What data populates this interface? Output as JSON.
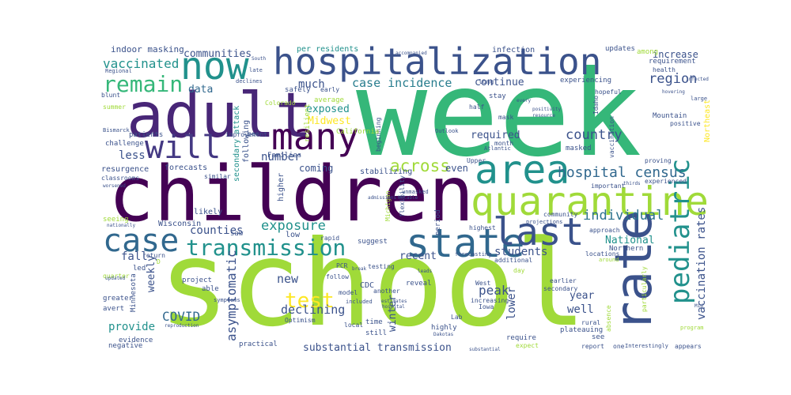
{
  "colors": {
    "background": "#ffffff",
    "palette": [
      "#440154",
      "#3b528b",
      "#21918c",
      "#35b779",
      "#a0da39",
      "#fde725"
    ]
  },
  "words": {
    "school": "school",
    "week": "week",
    "children": "children",
    "adult": "adult",
    "hospitalization": "hospitalization",
    "quarantine": "quarantine",
    "rate": "rate",
    "area": "area",
    "state": "state",
    "now": "now",
    "many": "many",
    "case": "case",
    "will": "will",
    "transmission": "transmission",
    "last": "last",
    "pediatric": "pediatric",
    "remain": "remain",
    "test": "test",
    "hospital_census": "hospital census",
    "case_incidence": "case incidence",
    "across": "across",
    "country": "country",
    "individual": "individual",
    "region": "region",
    "increase": "increase",
    "exposure": "exposure",
    "counties": "counties",
    "asymptomatic": "asymptomatic",
    "communities": "communities",
    "vaccinated": "vaccinated",
    "covid": "COVID",
    "declining": "declining",
    "vaccination_rates": "vaccination rates",
    "peak": "peak",
    "students": "students",
    "provide": "provide",
    "weekly": "weekly",
    "fall": "fall",
    "less": "less",
    "number": "number",
    "data": "data",
    "much": "much",
    "exposed": "exposed",
    "midwest": "Midwest",
    "continue": "continue",
    "required": "required",
    "coming": "coming",
    "recent": "recent",
    "winter": "winter",
    "new": "new",
    "well": "well",
    "lower": "lower",
    "year": "year",
    "national": "National",
    "substantial_transmission": "substantial transmission",
    "indoor_masking": "indoor masking",
    "per_residents": "per residents",
    "infection": "infection",
    "updates": "updates",
    "among": "among",
    "requirement": "requirement",
    "health": "health",
    "mountain": "Mountain",
    "positive": "positive",
    "northeast": "Northeast",
    "experienced": "experienced",
    "proving": "proving",
    "important": "important",
    "vaccination": "vaccination",
    "idaho": "Idaho",
    "masked": "masked",
    "experiencing": "experiencing",
    "hopeful": "hopeful",
    "long": "long",
    "stay": "stay",
    "half": "half",
    "mask": "mask",
    "month": "month",
    "outlook": "Outlook",
    "atlantic": "Atlantic",
    "upper": "Upper",
    "even": "even",
    "stabilizing": "stabilizing",
    "beginning": "beginning",
    "period": "period",
    "michigan": "Michigan",
    "flexibility": "flexibility",
    "unmasked": "unmasked",
    "community": "community",
    "projections": "projections",
    "highest": "highest",
    "approach": "approach",
    "northern": "Northern",
    "locations": "locations",
    "around": "around",
    "additional": "additional",
    "forecasting": "forecasting",
    "suggest": "suggest",
    "rapid": "rapid",
    "low": "low",
    "saw": "saw",
    "california": "California",
    "higher": "higher",
    "secondary_attack": "secondary attack",
    "following": "following",
    "forecasts": "forecasts",
    "resurgence": "resurgence",
    "classrooms": "classrooms",
    "similar": "similar",
    "families": "Families",
    "improvement": "improvement",
    "challenge": "challenge",
    "patients": "patients",
    "bismarck": "Bismarck",
    "summer": "summer",
    "blunt": "blunt",
    "regional": "Regional",
    "colorado": "Colorado",
    "safely": "safely",
    "average": "average",
    "early": "early",
    "declines": "declines",
    "resilient": "resilient",
    "seeing": "seeing",
    "likely": "likely",
    "wisconsin": "Wisconsin",
    "minnesota": "Minnesota",
    "nationally": "nationally",
    "quarter": "quarter",
    "led": "led",
    "project": "project",
    "able": "able",
    "greater": "greater",
    "avert": "avert",
    "evidence": "evidence",
    "negative": "negative",
    "practical": "practical",
    "optimism": "Optimism",
    "local": "local",
    "still": "still",
    "highly": "highly",
    "time": "time",
    "cdc": "CDC",
    "reveal": "reveal",
    "iowa": "Iowa",
    "lab": "Lab",
    "require": "require",
    "testing": "testing",
    "follow": "follow",
    "pcr": "PCR",
    "leads": "leads",
    "day": "day",
    "west": "West",
    "secondary": "secondary",
    "increasing": "increasing",
    "earlier": "earlier",
    "rural": "rural",
    "see": "see",
    "report": "report",
    "one": "one",
    "interestingly": "Interestingly",
    "appears": "appears",
    "absence": "absence",
    "particularly": "particularly",
    "program": "program",
    "expect": "expect",
    "model": "model",
    "another": "another",
    "included": "included",
    "estimates": "estimates",
    "hospital": "hospital",
    "symptoms": "symptoms",
    "return": "return",
    "reproduction": "reproduction",
    "updated": "updated",
    "accompanied": "accompanied",
    "infected": "infected",
    "hovering": "hovering",
    "large": "large",
    "plateauing": "plateauing",
    "dakotas": "Dakotas",
    "substantial": "substantial",
    "worsened": "worsened",
    "late": "late",
    "south": "South",
    "every": "every",
    "positivity": "positivity",
    "resource": "resource",
    "mid": "Mid",
    "thirds": "thirds",
    "admissions": "admissions",
    "notable": "Notable",
    "d": "D",
    "per": "per",
    "break": "break"
  }
}
